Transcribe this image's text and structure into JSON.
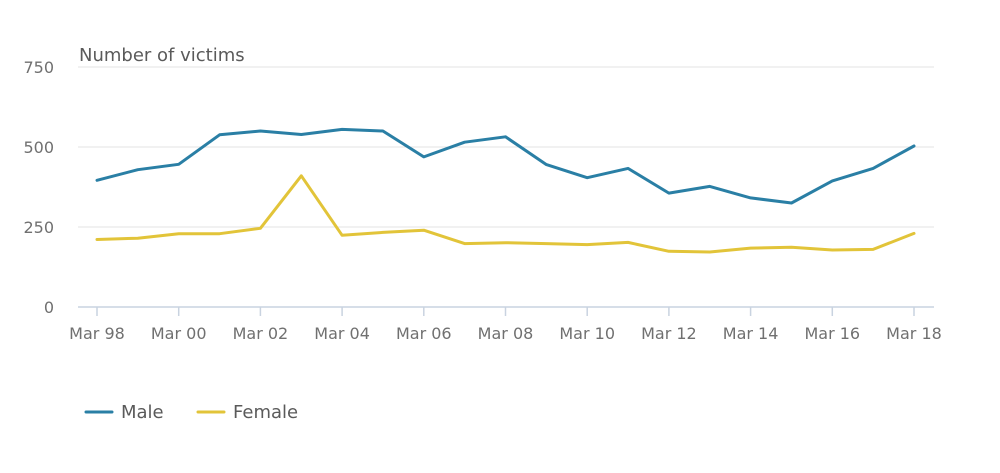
{
  "chart_data": {
    "type": "line",
    "ylabel": "Number of victims",
    "xlabel": "",
    "ylim": [
      0,
      750
    ],
    "yticks": [
      "0",
      "250",
      "500",
      "750"
    ],
    "x": [
      "Mar 98",
      "Mar 99",
      "Mar 00",
      "Mar 01",
      "Mar 02",
      "Mar 03",
      "Mar 04",
      "Mar 05",
      "Mar 06",
      "Mar 07",
      "Mar 08",
      "Mar 09",
      "Mar 10",
      "Mar 11",
      "Mar 12",
      "Mar 13",
      "Mar 14",
      "Mar 15",
      "Mar 16",
      "Mar 17",
      "Mar 18"
    ],
    "xtick_labels": [
      "Mar 98",
      "Mar 00",
      "Mar 02",
      "Mar 04",
      "Mar 06",
      "Mar 08",
      "Mar 10",
      "Mar 12",
      "Mar 14",
      "Mar 16",
      "Mar 18"
    ],
    "series": [
      {
        "name": "Male",
        "color": "#2a7fa5",
        "values": [
          396,
          429,
          446,
          538,
          550,
          539,
          555,
          550,
          469,
          515,
          532,
          445,
          404,
          433,
          356,
          377,
          341,
          325,
          394,
          433,
          503
        ]
      },
      {
        "name": "Female",
        "color": "#e2c439",
        "values": [
          211,
          215,
          229,
          229,
          246,
          410,
          224,
          233,
          240,
          198,
          201,
          198,
          195,
          202,
          174,
          172,
          184,
          187,
          178,
          180,
          230
        ]
      }
    ],
    "grid": true,
    "legend_position": "bottom-left"
  }
}
